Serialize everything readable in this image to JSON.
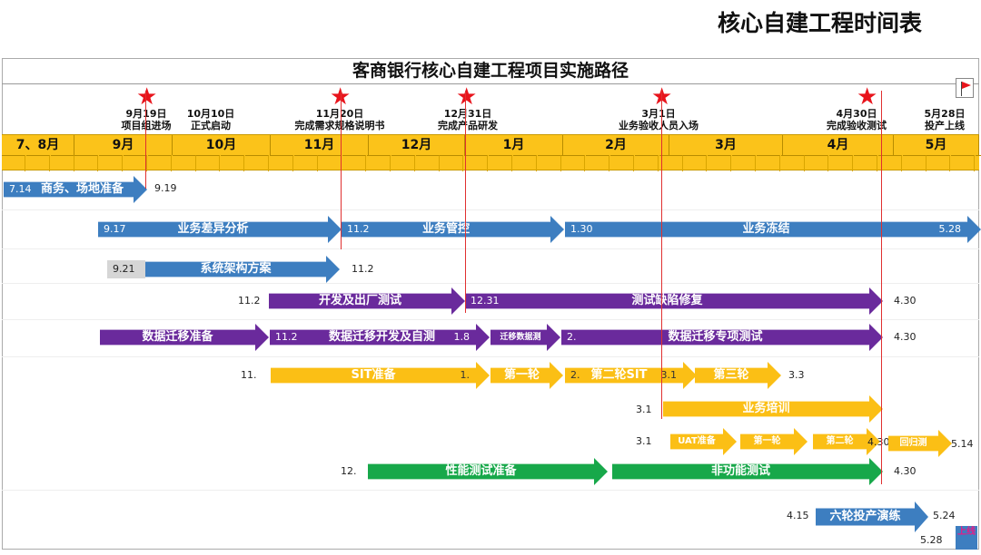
{
  "heading": "核心自建工程时间表",
  "title": "客商银行核心自建工程项目实施路径",
  "milestones": [
    {
      "date": "9月19日",
      "text": "项目组进场",
      "star": true
    },
    {
      "date": "10月10日",
      "text": "正式启动",
      "star": false
    },
    {
      "date": "11月20日",
      "text": "完成需求规格说明书",
      "star": true
    },
    {
      "date": "12月31日",
      "text": "完成产品研发",
      "star": true
    },
    {
      "date": "3月1日",
      "text": "业务验收人员入场",
      "star": true
    },
    {
      "date": "4月30日",
      "text": "完成验收测试",
      "star": true
    },
    {
      "date": "5月28日",
      "text": "投产上线",
      "star": false,
      "icon": "flag-icon"
    }
  ],
  "months": [
    "7、8月",
    "9月",
    "10月",
    "11月",
    "12月",
    "1月",
    "2月",
    "3月",
    "4月",
    "5月"
  ],
  "colors": {
    "header": "#fbc31a",
    "blue": "#3d7ec0",
    "purple": "#6a2a9c",
    "yellow": "#fbbf15",
    "green": "#17a84a",
    "milestone": "#e8141c"
  },
  "rows": {
    "r1": {
      "start": "7.14",
      "label": "商务、场地准备",
      "end": "9.19"
    },
    "r2": {
      "a_start": "9.17",
      "a_label": "业务差异分析",
      "b_start": "11.2",
      "b_label": "业务管控",
      "c_start": "1.30",
      "c_label": "业务冻结",
      "c_end": "5.28"
    },
    "r3": {
      "start": "9.21",
      "label": "系统架构方案",
      "end": "11.2"
    },
    "r4": {
      "start": "11.2",
      "a_label": "开发及出厂测试",
      "b_start": "12.31",
      "b_label": "测试缺陷修复",
      "end": "4.30"
    },
    "r5": {
      "a_label": "数据迁移准备",
      "b_start": "11.2",
      "b_label": "数据迁移开发及自测",
      "b_end": "1.8",
      "c_label": "迁移数据测",
      "d_start": "2.",
      "d_label": "数据迁移专项测试",
      "end": "4.30"
    },
    "r6": {
      "start": "11.",
      "a_label": "SIT准备",
      "a_end": "1.",
      "b_label": "第一轮",
      "c_start": "2.",
      "c_label": "第二轮SIT",
      "d_start": "3.1",
      "e_label": "第三轮",
      "end": "3.3"
    },
    "r7": {
      "start": "3.1",
      "label": "业务培训"
    },
    "r8": {
      "start": "3.1",
      "a_label": "UAT准备",
      "b_label": "第一轮",
      "c_label": "第二轮",
      "c_end": "4.30",
      "d_label": "回归测",
      "end": "5.14"
    },
    "r9": {
      "start": "12.",
      "a_label": "性能测试准备",
      "b_label": "非功能测试",
      "end": "4.30"
    },
    "r10": {
      "start": "4.15",
      "label": "六轮投产演练",
      "end": "5.24"
    },
    "r11": {
      "date": "5.28",
      "label": "上线"
    }
  }
}
